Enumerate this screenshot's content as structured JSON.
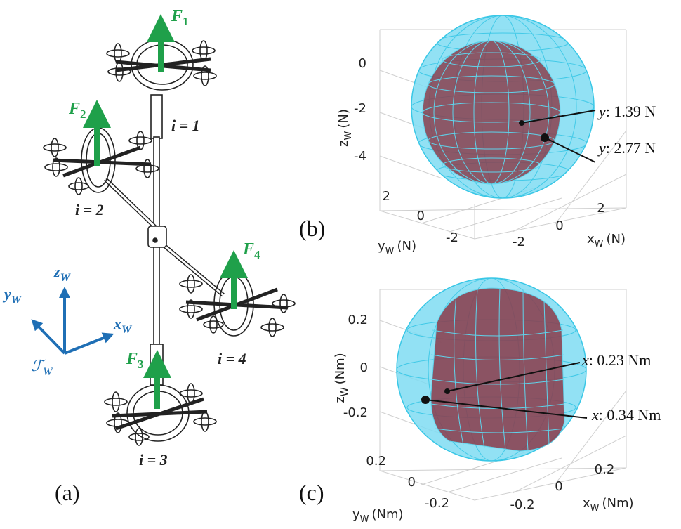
{
  "panel_a": {
    "caption": "(a)",
    "forces": [
      {
        "main": "F",
        "sub": "1"
      },
      {
        "main": "F",
        "sub": "2"
      },
      {
        "main": "F",
        "sub": "3"
      },
      {
        "main": "F",
        "sub": "4"
      }
    ],
    "indices": [
      "i = 1",
      "i = 2",
      "i = 3",
      "i = 4"
    ],
    "frame": {
      "z": {
        "main": "z",
        "sub": "W"
      },
      "y": {
        "main": "y",
        "sub": "W"
      },
      "x": {
        "main": "x",
        "sub": "W"
      },
      "F": {
        "main": "ℱ",
        "sub": "W"
      }
    },
    "colors": {
      "force": "#1fa04a",
      "frame": "#1f6fb5",
      "ink": "#222222"
    }
  },
  "panel_b": {
    "caption": "(b)",
    "z_label": {
      "main": "z",
      "sub": "W",
      "unit": "(N)"
    },
    "y_label": {
      "main": "y",
      "sub": "W",
      "unit": "(N)"
    },
    "x_label": {
      "main": "x",
      "sub": "W",
      "unit": "(N)"
    },
    "z_ticks": [
      "0",
      "-2",
      "-4"
    ],
    "y_ticks": [
      "2",
      "0",
      "-2"
    ],
    "x_ticks": [
      "-2",
      "0",
      "2"
    ],
    "annotations": [
      {
        "var": "y",
        "text": ": 1.39 N"
      },
      {
        "var": "y",
        "text": ": 2.77 N"
      }
    ]
  },
  "panel_c": {
    "caption": "(c)",
    "z_label": {
      "main": "z",
      "sub": "W",
      "unit": "(Nm)"
    },
    "y_label": {
      "main": "y",
      "sub": "W",
      "unit": "(Nm)"
    },
    "x_label": {
      "main": "x",
      "sub": "W",
      "unit": "(Nm)"
    },
    "z_ticks": [
      "0.2",
      "0",
      "-0.2"
    ],
    "y_ticks": [
      "0.2",
      "0",
      "-0.2"
    ],
    "x_ticks": [
      "-0.2",
      "0",
      "0.2"
    ],
    "annotations": [
      {
        "var": "x",
        "text": ": 0.23 Nm"
      },
      {
        "var": "x",
        "text": ": 0.34 Nm"
      }
    ]
  },
  "colors": {
    "outer_fill": "#7fdcf2",
    "outer_mesh": "#39c7e6",
    "inner_fill": "#8a3f4e",
    "box": "#c8c8c8"
  }
}
